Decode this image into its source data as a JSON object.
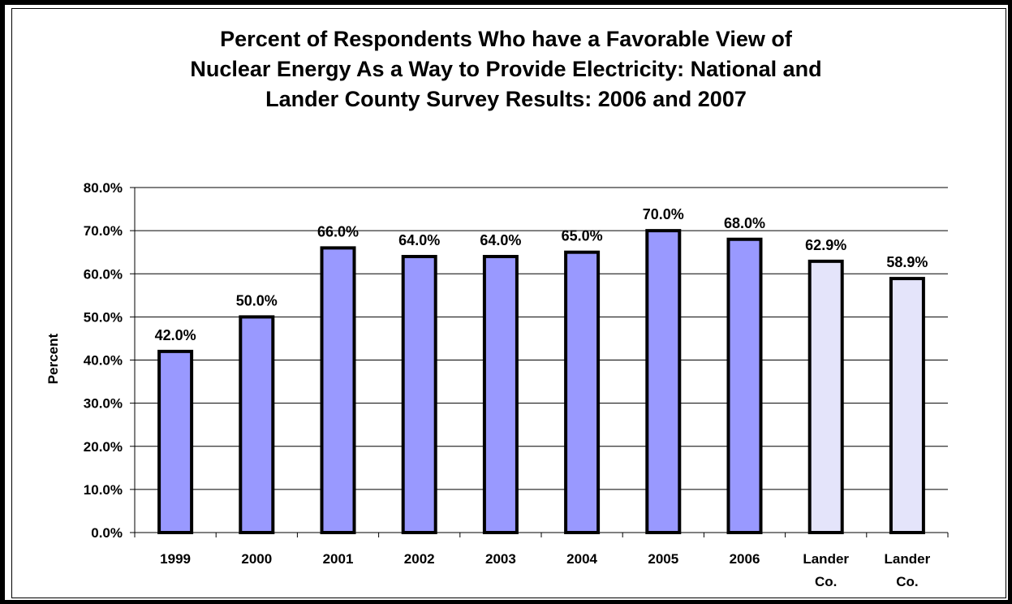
{
  "chart_data": {
    "type": "bar",
    "title": "Percent of Respondents Who have a Favorable View of\nNuclear Energy  As a Way to Provide Electricity: National and\nLander County Survey Results: 2006 and 2007",
    "ylabel": "Percent",
    "xlabel": "",
    "ylim": [
      0,
      80
    ],
    "yticks": [
      "0.0%",
      "10.0%",
      "20.0%",
      "30.0%",
      "40.0%",
      "50.0%",
      "60.0%",
      "70.0%",
      "80.0%"
    ],
    "categories": [
      "1999",
      "2000",
      "2001",
      "2002",
      "2003",
      "2004",
      "2005",
      "2006",
      "Lander Co.",
      "Lander Co."
    ],
    "values": [
      42.0,
      50.0,
      66.0,
      64.0,
      64.0,
      65.0,
      70.0,
      68.0,
      62.9,
      58.9
    ],
    "data_labels": [
      "42.0%",
      "50.0%",
      "66.0%",
      "64.0%",
      "64.0%",
      "65.0%",
      "70.0%",
      "68.0%",
      "62.9%",
      "58.9%"
    ],
    "bar_colors": [
      "#9999ff",
      "#9999ff",
      "#9999ff",
      "#9999ff",
      "#9999ff",
      "#9999ff",
      "#9999ff",
      "#9999ff",
      "#e4e4fa",
      "#e4e4fa"
    ],
    "grid": true,
    "legend": "none"
  }
}
